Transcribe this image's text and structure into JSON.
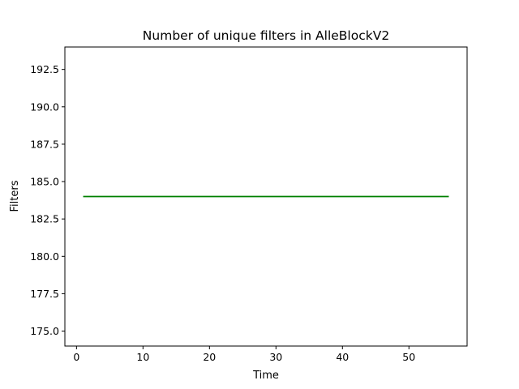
{
  "chart_data": {
    "type": "line",
    "title": "Number of unique filters in AlleBlockV2",
    "xlabel": "Time",
    "ylabel": "Filters",
    "xlim": [
      -1.75,
      58.75
    ],
    "ylim": [
      174.0,
      194.0
    ],
    "xticks": [
      0,
      10,
      20,
      30,
      40,
      50
    ],
    "xtick_labels": [
      "0",
      "10",
      "20",
      "30",
      "40",
      "50"
    ],
    "yticks": [
      175.0,
      177.5,
      180.0,
      182.5,
      185.0,
      187.5,
      190.0,
      192.5
    ],
    "ytick_labels": [
      "175.0",
      "177.5",
      "180.0",
      "182.5",
      "185.0",
      "187.5",
      "190.0",
      "192.5"
    ],
    "grid": false,
    "series": [
      {
        "color": "#008000",
        "x": [
          1,
          56
        ],
        "y": [
          184,
          184
        ]
      }
    ]
  }
}
